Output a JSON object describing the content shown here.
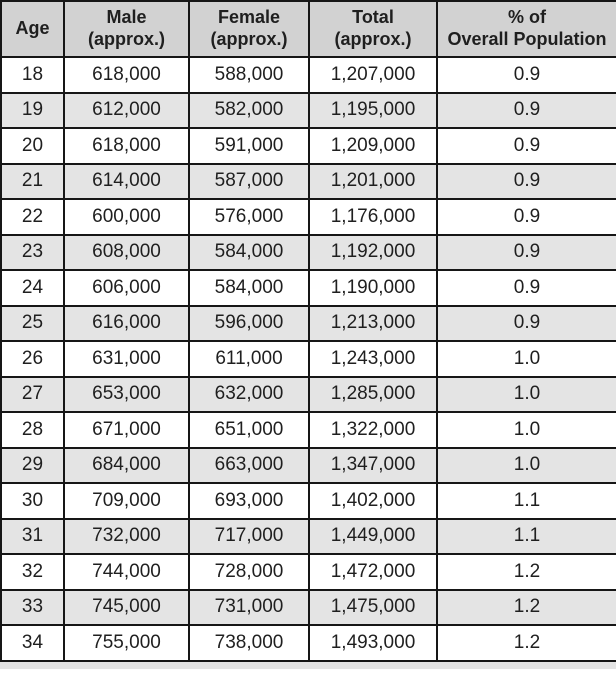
{
  "colors": {
    "header_bg": "#d2d2d2",
    "row_shaded_bg": "#e4e4e4",
    "border": "#161616",
    "text": "#1f1f1f"
  },
  "chart_data": {
    "type": "table",
    "columns": [
      "Age",
      "Male\n(approx.)",
      "Female\n(approx.)",
      "Total\n(approx.)",
      "% of\nOverall Population"
    ],
    "column_keys": [
      "age",
      "male",
      "female",
      "total",
      "pct-overall"
    ],
    "rows": [
      [
        "18",
        "618,000",
        "588,000",
        "1,207,000",
        "0.9"
      ],
      [
        "19",
        "612,000",
        "582,000",
        "1,195,000",
        "0.9"
      ],
      [
        "20",
        "618,000",
        "591,000",
        "1,209,000",
        "0.9"
      ],
      [
        "21",
        "614,000",
        "587,000",
        "1,201,000",
        "0.9"
      ],
      [
        "22",
        "600,000",
        "576,000",
        "1,176,000",
        "0.9"
      ],
      [
        "23",
        "608,000",
        "584,000",
        "1,192,000",
        "0.9"
      ],
      [
        "24",
        "606,000",
        "584,000",
        "1,190,000",
        "0.9"
      ],
      [
        "25",
        "616,000",
        "596,000",
        "1,213,000",
        "0.9"
      ],
      [
        "26",
        "631,000",
        "611,000",
        "1,243,000",
        "1.0"
      ],
      [
        "27",
        "653,000",
        "632,000",
        "1,285,000",
        "1.0"
      ],
      [
        "28",
        "671,000",
        "651,000",
        "1,322,000",
        "1.0"
      ],
      [
        "29",
        "684,000",
        "663,000",
        "1,347,000",
        "1.0"
      ],
      [
        "30",
        "709,000",
        "693,000",
        "1,402,000",
        "1.1"
      ],
      [
        "31",
        "732,000",
        "717,000",
        "1,449,000",
        "1.1"
      ],
      [
        "32",
        "744,000",
        "728,000",
        "1,472,000",
        "1.2"
      ],
      [
        "33",
        "745,000",
        "731,000",
        "1,475,000",
        "1.2"
      ],
      [
        "34",
        "755,000",
        "738,000",
        "1,493,000",
        "1.2"
      ]
    ]
  }
}
